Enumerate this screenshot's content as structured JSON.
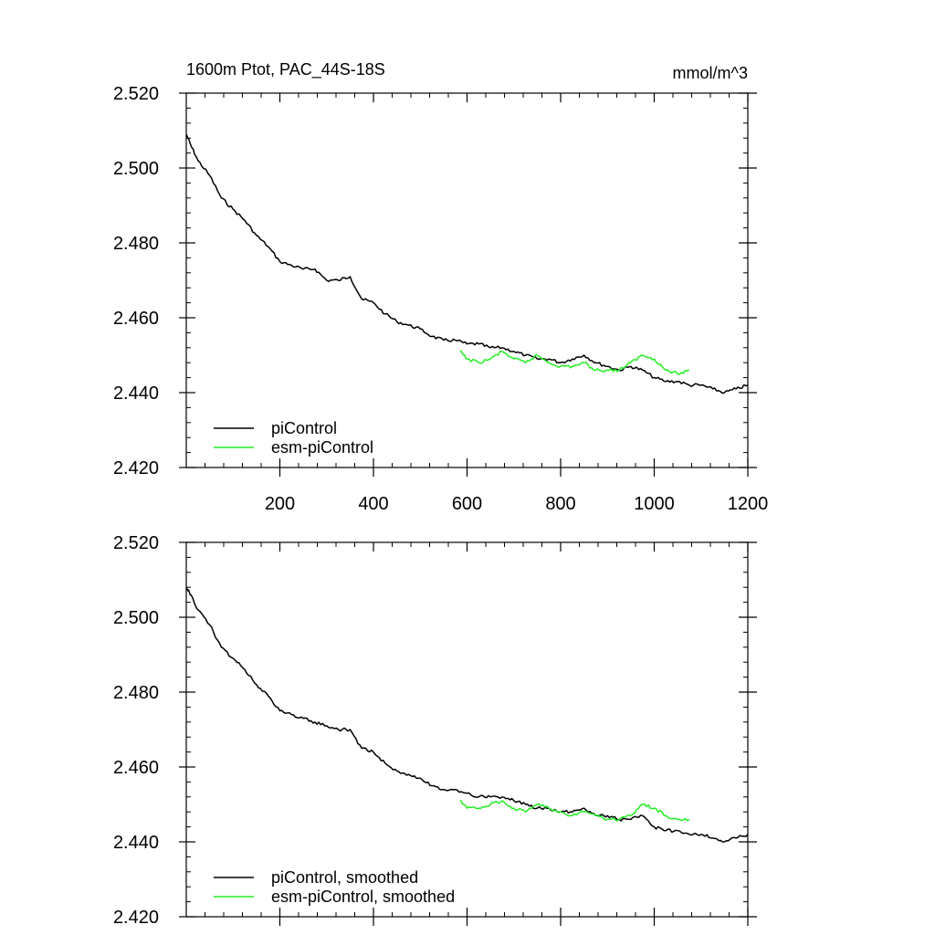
{
  "chart_data": [
    {
      "type": "line",
      "title": "1600m Ptot, PAC_44S-18S",
      "units": "mmol/m^3",
      "xlim": [
        0,
        1200
      ],
      "ylim": [
        2.42,
        2.52
      ],
      "xticks": [
        200,
        400,
        600,
        800,
        1000,
        1200
      ],
      "yticks": [
        2.42,
        2.44,
        2.46,
        2.48,
        2.5,
        2.52
      ],
      "ytick_labels": [
        "2.420",
        "2.440",
        "2.460",
        "2.480",
        "2.500",
        "2.520"
      ],
      "xtick_labels": [
        "200",
        "400",
        "600",
        "800",
        "1000",
        "1200"
      ],
      "legend_position": "bottom-left",
      "series": [
        {
          "name": "piControl",
          "color": "#000000",
          "x": [
            0,
            10,
            25,
            50,
            75,
            100,
            125,
            150,
            175,
            200,
            225,
            250,
            275,
            300,
            325,
            350,
            375,
            400,
            425,
            450,
            475,
            500,
            525,
            550,
            575,
            600,
            625,
            650,
            675,
            700,
            725,
            750,
            775,
            800,
            825,
            850,
            875,
            900,
            925,
            950,
            975,
            1000,
            1025,
            1050,
            1075,
            1100,
            1125,
            1150,
            1175,
            1200
          ],
          "y": [
            2.509,
            2.506,
            2.502,
            2.498,
            2.492,
            2.489,
            2.486,
            2.482,
            2.479,
            2.475,
            2.474,
            2.473,
            2.473,
            2.47,
            2.47,
            2.471,
            2.465,
            2.464,
            2.461,
            2.459,
            2.458,
            2.457,
            2.455,
            2.454,
            2.454,
            2.453,
            2.453,
            2.452,
            2.452,
            2.451,
            2.45,
            2.449,
            2.449,
            2.448,
            2.449,
            2.45,
            2.448,
            2.447,
            2.446,
            2.447,
            2.446,
            2.444,
            2.443,
            2.443,
            2.442,
            2.442,
            2.441,
            2.44,
            2.441,
            2.442
          ]
        },
        {
          "name": "esm-piControl",
          "color": "#22ee22",
          "x": [
            585,
            600,
            625,
            650,
            675,
            700,
            725,
            750,
            775,
            800,
            825,
            850,
            875,
            900,
            925,
            950,
            975,
            1000,
            1025,
            1050,
            1075
          ],
          "y": [
            2.451,
            2.449,
            2.448,
            2.449,
            2.451,
            2.449,
            2.448,
            2.45,
            2.448,
            2.447,
            2.447,
            2.448,
            2.446,
            2.446,
            2.446,
            2.448,
            2.45,
            2.449,
            2.446,
            2.445,
            2.446
          ]
        }
      ]
    },
    {
      "type": "line",
      "title": "",
      "xlim": [
        0,
        1200
      ],
      "ylim": [
        2.42,
        2.52
      ],
      "xticks": [
        200,
        400,
        600,
        800,
        1000,
        1200
      ],
      "yticks": [
        2.42,
        2.44,
        2.46,
        2.48,
        2.5,
        2.52
      ],
      "ytick_labels": [
        "2.420",
        "2.440",
        "2.460",
        "2.480",
        "2.500",
        "2.520"
      ],
      "legend_position": "bottom-left",
      "series": [
        {
          "name": "piControl, smoothed",
          "color": "#000000",
          "x": [
            0,
            10,
            25,
            50,
            75,
            100,
            125,
            150,
            175,
            200,
            225,
            250,
            275,
            300,
            325,
            350,
            375,
            400,
            425,
            450,
            475,
            500,
            525,
            550,
            575,
            600,
            625,
            650,
            675,
            700,
            725,
            750,
            775,
            800,
            825,
            850,
            875,
            900,
            925,
            950,
            975,
            1000,
            1025,
            1050,
            1075,
            1100,
            1125,
            1150,
            1175,
            1200
          ],
          "y": [
            2.508,
            2.506,
            2.502,
            2.498,
            2.492,
            2.489,
            2.486,
            2.482,
            2.479,
            2.475,
            2.474,
            2.473,
            2.472,
            2.471,
            2.47,
            2.47,
            2.465,
            2.464,
            2.461,
            2.459,
            2.458,
            2.457,
            2.455,
            2.454,
            2.454,
            2.453,
            2.452,
            2.452,
            2.452,
            2.451,
            2.45,
            2.449,
            2.449,
            2.448,
            2.448,
            2.449,
            2.447,
            2.447,
            2.446,
            2.446,
            2.447,
            2.444,
            2.443,
            2.443,
            2.442,
            2.442,
            2.441,
            2.44,
            2.441,
            2.442
          ]
        },
        {
          "name": "esm-piControl, smoothed",
          "color": "#22ee22",
          "x": [
            585,
            600,
            625,
            650,
            675,
            700,
            725,
            750,
            775,
            800,
            825,
            850,
            875,
            900,
            925,
            950,
            975,
            1000,
            1025,
            1050,
            1075
          ],
          "y": [
            2.451,
            2.449,
            2.449,
            2.45,
            2.451,
            2.449,
            2.448,
            2.45,
            2.449,
            2.448,
            2.447,
            2.448,
            2.447,
            2.446,
            2.446,
            2.447,
            2.45,
            2.449,
            2.447,
            2.446,
            2.446
          ]
        }
      ]
    }
  ]
}
